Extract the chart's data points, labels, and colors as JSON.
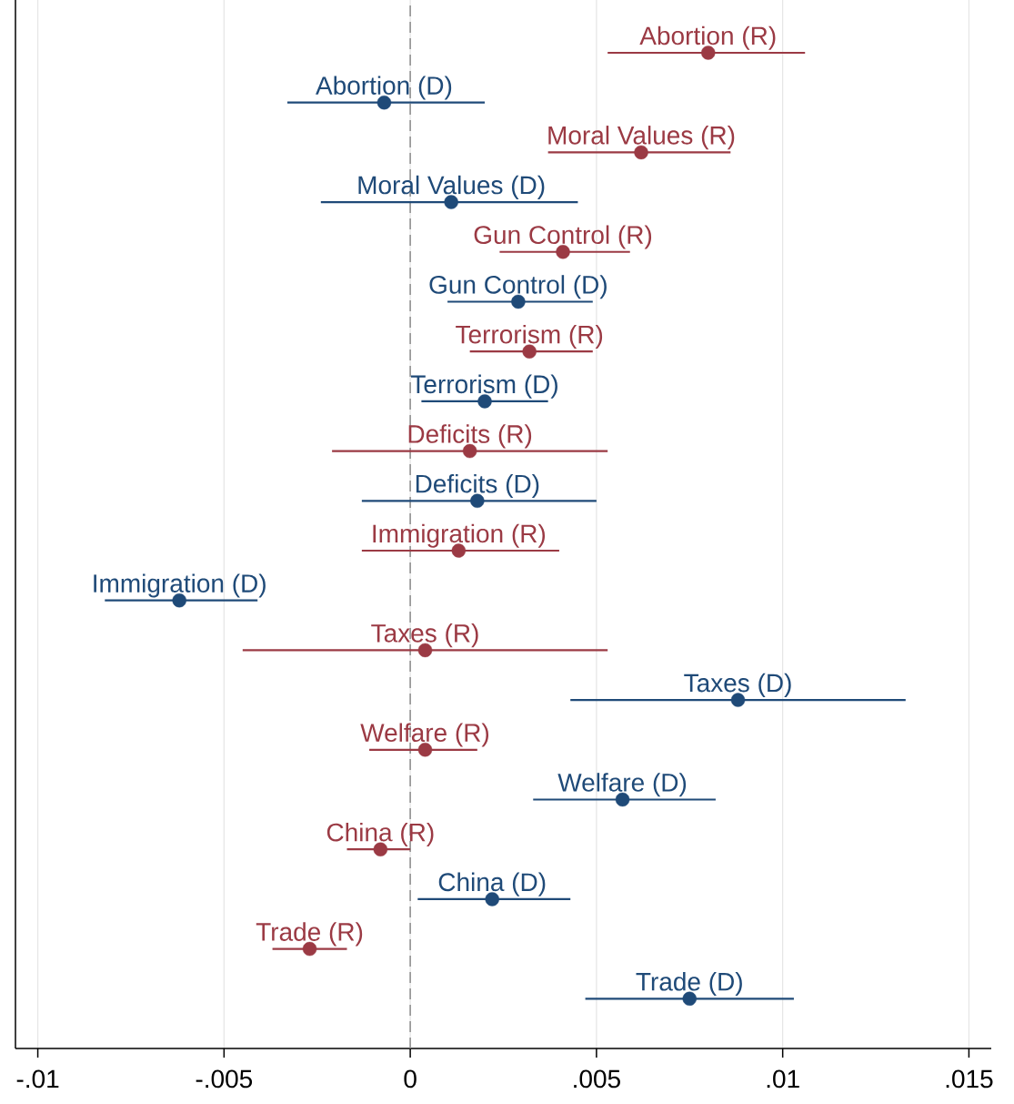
{
  "chart_data": {
    "type": "scatter",
    "orientation": "horizontal",
    "grid": "x",
    "categories": [
      "Abortion (R)",
      "Abortion (D)",
      "Moral Values (R)",
      "Moral Values (D)",
      "Gun Control (R)",
      "Gun Control (D)",
      "Terrorism (R)",
      "Terrorism (D)",
      "Deficits (R)",
      "Deficits (D)",
      "Immigration (R)",
      "Immigration (D)",
      "Taxes (R)",
      "Taxes (D)",
      "Welfare (R)",
      "Welfare (D)",
      "China (R)",
      "China (D)",
      "Trade (R)",
      "Trade (D)"
    ],
    "values": [
      0.008,
      -0.0007,
      0.0062,
      0.0011,
      0.0041,
      0.0029,
      0.0032,
      0.002,
      0.0016,
      0.0018,
      0.0013,
      -0.0062,
      0.0004,
      0.0088,
      0.0004,
      0.0057,
      -0.0008,
      0.0022,
      -0.0027,
      0.0075
    ],
    "errors": [
      [
        0.0053,
        0.0106
      ],
      [
        -0.0033,
        0.002
      ],
      [
        0.0037,
        0.0086
      ],
      [
        -0.0024,
        0.0045
      ],
      [
        0.0024,
        0.0059
      ],
      [
        0.001,
        0.0049
      ],
      [
        0.0016,
        0.0049
      ],
      [
        0.0003,
        0.0037
      ],
      [
        -0.0021,
        0.0053
      ],
      [
        -0.0013,
        0.005
      ],
      [
        -0.0013,
        0.004
      ],
      [
        -0.0082,
        -0.0041
      ],
      [
        -0.0045,
        0.0053
      ],
      [
        0.0043,
        0.0133
      ],
      [
        -0.0011,
        0.0018
      ],
      [
        0.0033,
        0.0082
      ],
      [
        -0.0017,
        0.0
      ],
      [
        0.0002,
        0.0043
      ],
      [
        -0.0037,
        -0.0017
      ],
      [
        0.0047,
        0.0103
      ]
    ],
    "colors": [
      "#9b3a44",
      "#1f4a78",
      "#9b3a44",
      "#1f4a78",
      "#9b3a44",
      "#1f4a78",
      "#9b3a44",
      "#1f4a78",
      "#9b3a44",
      "#1f4a78",
      "#9b3a44",
      "#1f4a78",
      "#9b3a44",
      "#1f4a78",
      "#9b3a44",
      "#1f4a78",
      "#9b3a44",
      "#1f4a78",
      "#9b3a44",
      "#1f4a78"
    ],
    "xlim": [
      -0.0106,
      0.0156
    ],
    "xticks": [
      {
        "value": -0.01,
        "label": "-.01"
      },
      {
        "value": -0.005,
        "label": "-.005"
      },
      {
        "value": 0,
        "label": "0"
      },
      {
        "value": 0.005,
        "label": ".005"
      },
      {
        "value": 0.01,
        "label": ".01"
      },
      {
        "value": 0.015,
        "label": ".015"
      }
    ],
    "ref_lines": [
      {
        "axis": "x",
        "value": 0,
        "color": "#8c8c8c",
        "line_style": "dashed"
      }
    ]
  }
}
